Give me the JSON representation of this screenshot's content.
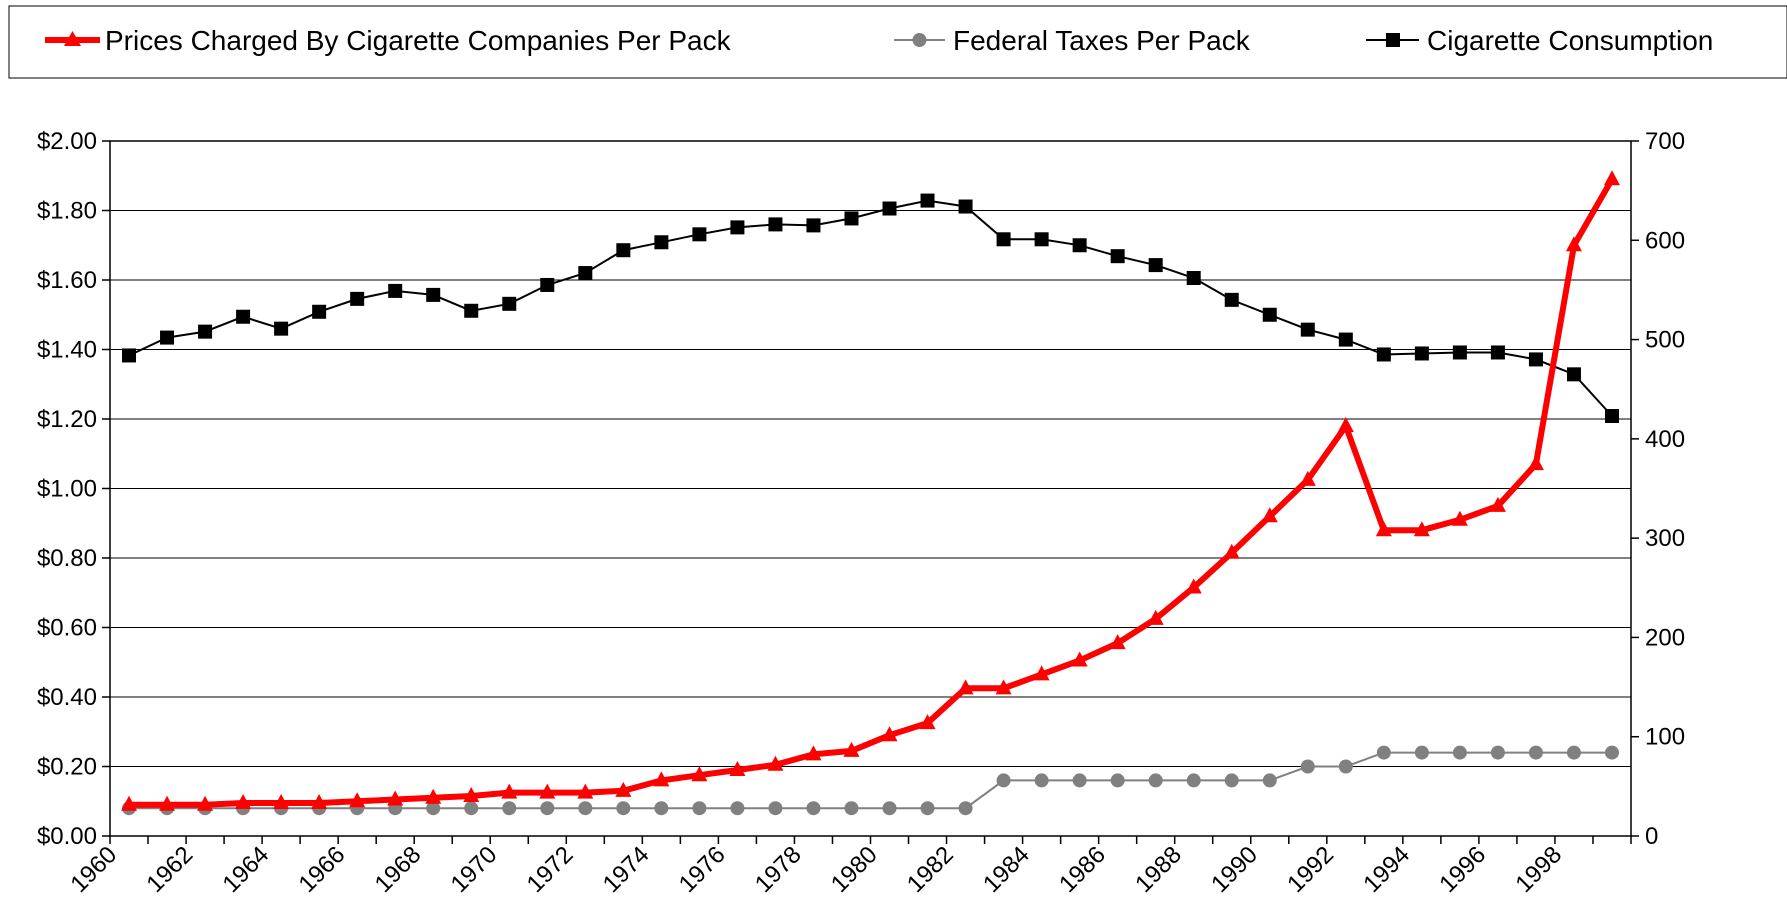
{
  "chart_data": {
    "type": "line",
    "title": "",
    "xlabel": "",
    "ylabel": "",
    "categories": [
      "1960",
      "1961",
      "1962",
      "1963",
      "1964",
      "1965",
      "1966",
      "1967",
      "1968",
      "1969",
      "1970",
      "1971",
      "1972",
      "1973",
      "1974",
      "1975",
      "1976",
      "1977",
      "1978",
      "1979",
      "1980",
      "1981",
      "1982",
      "1983",
      "1984",
      "1985",
      "1986",
      "1987",
      "1988",
      "1989",
      "1990",
      "1991",
      "1992",
      "1993",
      "1994",
      "1995",
      "1996",
      "1997",
      "1998",
      "1999"
    ],
    "x_tick_labels": [
      "1960",
      "1962",
      "1964",
      "1966",
      "1968",
      "1970",
      "1972",
      "1974",
      "1976",
      "1978",
      "1980",
      "1982",
      "1984",
      "1986",
      "1988",
      "1990",
      "1992",
      "1994",
      "1996",
      "1998"
    ],
    "y_left": {
      "ylim": [
        0,
        2.0
      ],
      "ticks": [
        "$0.00",
        "$0.20",
        "$0.40",
        "$0.60",
        "$0.80",
        "$1.00",
        "$1.20",
        "$1.40",
        "$1.60",
        "$1.80",
        "$2.00"
      ]
    },
    "y_right": {
      "ylim": [
        0,
        700
      ],
      "ticks": [
        "0",
        "100",
        "200",
        "300",
        "400",
        "500",
        "600",
        "700"
      ]
    },
    "grid": "horizontal",
    "legend_position": "top",
    "series": [
      {
        "name": "Prices Charged By Cigarette Companies Per Pack",
        "axis": "left",
        "color": "#ff0000",
        "marker": "triangle",
        "values": [
          0.09,
          0.09,
          0.09,
          0.095,
          0.095,
          0.095,
          0.1,
          0.105,
          0.11,
          0.115,
          0.125,
          0.125,
          0.125,
          0.13,
          0.16,
          0.175,
          0.19,
          0.205,
          0.235,
          0.245,
          0.29,
          0.325,
          0.425,
          0.425,
          0.465,
          0.505,
          0.555,
          0.625,
          0.715,
          0.815,
          0.92,
          1.025,
          1.18,
          0.88,
          0.88,
          0.91,
          0.95,
          1.07,
          1.7,
          1.89
        ]
      },
      {
        "name": "Federal Taxes Per Pack",
        "axis": "left",
        "color": "#808080",
        "marker": "circle",
        "values": [
          0.08,
          0.08,
          0.08,
          0.08,
          0.08,
          0.08,
          0.08,
          0.08,
          0.08,
          0.08,
          0.08,
          0.08,
          0.08,
          0.08,
          0.08,
          0.08,
          0.08,
          0.08,
          0.08,
          0.08,
          0.08,
          0.08,
          0.08,
          0.16,
          0.16,
          0.16,
          0.16,
          0.16,
          0.16,
          0.16,
          0.16,
          0.2,
          0.2,
          0.24,
          0.24,
          0.24,
          0.24,
          0.24,
          0.24,
          0.24
        ]
      },
      {
        "name": "Cigarette Consumption",
        "axis": "right",
        "color": "#000000",
        "marker": "square",
        "values": [
          484,
          502,
          508,
          523,
          511,
          528,
          541,
          549,
          545,
          529,
          536,
          555,
          567,
          590,
          598,
          606,
          613,
          616,
          615,
          622,
          632,
          640,
          634,
          601,
          601,
          595,
          584,
          575,
          562,
          540,
          525,
          510,
          500,
          485,
          486,
          487,
          487,
          480,
          465,
          423
        ]
      }
    ]
  }
}
